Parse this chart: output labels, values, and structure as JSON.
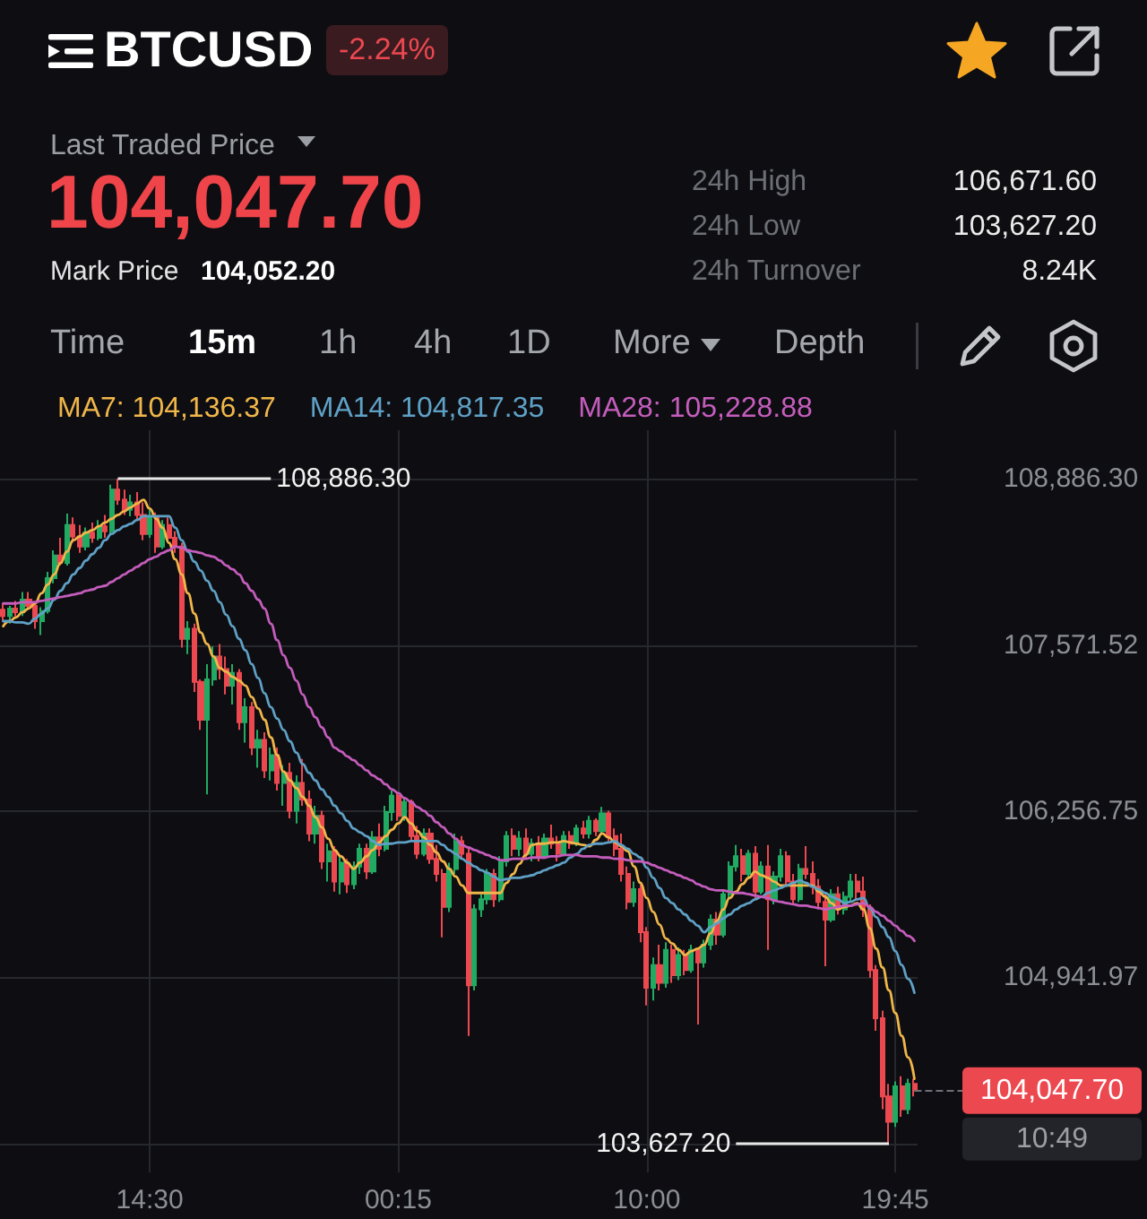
{
  "chart_data": {
    "type": "candlestick",
    "title": "BTCUSD",
    "categories": [
      null,
      null,
      null,
      null,
      null,
      null,
      null,
      null,
      null,
      null,
      null,
      null,
      null,
      null,
      null,
      null,
      null,
      null,
      null,
      null,
      null,
      null,
      null,
      "14:30",
      null,
      null,
      null,
      null,
      null,
      null,
      null,
      null,
      null,
      null,
      null,
      null,
      null,
      null,
      null,
      null,
      null,
      null,
      null,
      null,
      null,
      null,
      null,
      null,
      null,
      null,
      null,
      null,
      null,
      null,
      null,
      null,
      null,
      null,
      null,
      null,
      null,
      null,
      "00:15",
      null,
      null,
      null,
      null,
      null,
      null,
      null,
      null,
      null,
      null,
      null,
      null,
      null,
      null,
      null,
      null,
      null,
      null,
      null,
      null,
      null,
      null,
      null,
      null,
      null,
      null,
      null,
      null,
      null,
      null,
      null,
      null,
      null,
      null,
      null,
      null,
      null,
      null,
      "10:00",
      null,
      null,
      null,
      null,
      null,
      null,
      null,
      null,
      null,
      null,
      null,
      null,
      null,
      null,
      null,
      null,
      null,
      null,
      null,
      null,
      null,
      null,
      null,
      null,
      null,
      null,
      null,
      null,
      null,
      null,
      null,
      null,
      null,
      null,
      null,
      null,
      null,
      null,
      "19:45",
      null,
      null,
      null
    ],
    "series": [
      {
        "ohlc": [
          [
            107850,
            107900,
            107760,
            107800
          ],
          [
            107800,
            107880,
            107740,
            107860
          ],
          [
            107860,
            107920,
            107800,
            107830
          ],
          [
            107830,
            107990,
            107800,
            107930
          ],
          [
            107930,
            107990,
            107850,
            107880
          ],
          [
            107880,
            107920,
            107700,
            107760
          ],
          [
            107760,
            107870,
            107650,
            107840
          ],
          [
            107840,
            108150,
            107820,
            108100
          ],
          [
            108100,
            108320,
            108060,
            108280
          ],
          [
            108280,
            108420,
            108200,
            108220
          ],
          [
            108220,
            108610,
            108200,
            108520
          ],
          [
            108520,
            108580,
            108380,
            108430
          ],
          [
            108430,
            108520,
            108300,
            108350
          ],
          [
            108350,
            108500,
            108320,
            108460
          ],
          [
            108460,
            108540,
            108380,
            108420
          ],
          [
            108420,
            108560,
            108400,
            108510
          ],
          [
            108510,
            108600,
            108420,
            108470
          ],
          [
            108470,
            108840,
            108450,
            108800
          ],
          [
            108800,
            108886.3,
            108680,
            108720
          ],
          [
            108720,
            108800,
            108600,
            108640
          ],
          [
            108640,
            108760,
            108590,
            108700
          ],
          [
            108700,
            108780,
            108560,
            108600
          ],
          [
            108600,
            108700,
            108400,
            108450
          ],
          [
            108450,
            108640,
            108420,
            108580
          ],
          [
            108580,
            108620,
            108300,
            108350
          ],
          [
            108350,
            108560,
            108330,
            108520
          ],
          [
            108520,
            108580,
            108380,
            108420
          ],
          [
            108420,
            108470,
            108300,
            108350
          ],
          [
            108350,
            108380,
            107550,
            107620
          ],
          [
            107620,
            107760,
            107500,
            107700
          ],
          [
            107700,
            107740,
            107200,
            107280
          ],
          [
            107280,
            107300,
            106900,
            106980
          ],
          [
            106980,
            107420,
            106390,
            107300
          ],
          [
            107300,
            107560,
            107250,
            107480
          ],
          [
            107480,
            107580,
            107300,
            107380
          ],
          [
            107380,
            107480,
            107180,
            107250
          ],
          [
            107250,
            107420,
            107100,
            107350
          ],
          [
            107350,
            107380,
            106900,
            106960
          ],
          [
            106960,
            107150,
            106800,
            107080
          ],
          [
            107080,
            107120,
            106700,
            106760
          ],
          [
            106760,
            106900,
            106600,
            106820
          ],
          [
            106820,
            106880,
            106520,
            106580
          ],
          [
            106580,
            106760,
            106500,
            106700
          ],
          [
            106700,
            106760,
            106420,
            106480
          ],
          [
            106480,
            106620,
            106300,
            106560
          ],
          [
            106560,
            106640,
            106200,
            106260
          ],
          [
            106260,
            106540,
            106160,
            106480
          ],
          [
            106480,
            106670,
            106300,
            106350
          ],
          [
            106350,
            106420,
            106020,
            106080
          ],
          [
            106080,
            106300,
            106000,
            106220
          ],
          [
            106220,
            106260,
            105800,
            105860
          ],
          [
            105860,
            106000,
            105700,
            105940
          ],
          [
            105940,
            105980,
            105620,
            105700
          ],
          [
            105700,
            105900,
            105600,
            105850
          ],
          [
            105850,
            105880,
            105610,
            105680
          ],
          [
            105680,
            105860,
            105640,
            105820
          ],
          [
            105820,
            106000,
            105760,
            105960
          ],
          [
            105960,
            106000,
            105720,
            105780
          ],
          [
            105780,
            106100,
            105760,
            106050
          ],
          [
            106050,
            106160,
            105900,
            105960
          ],
          [
            105960,
            106300,
            105940,
            106250
          ],
          [
            106250,
            106420,
            106180,
            106380
          ],
          [
            106380,
            106400,
            106180,
            106220
          ],
          [
            106220,
            106360,
            106180,
            106330
          ],
          [
            106330,
            106350,
            106020,
            106060
          ],
          [
            106060,
            106140,
            105880,
            105920
          ],
          [
            105920,
            106120,
            105900,
            106080
          ],
          [
            106080,
            106120,
            105840,
            105880
          ],
          [
            105880,
            105990,
            105700,
            105760
          ],
          [
            105760,
            105800,
            105260,
            105500
          ],
          [
            105500,
            105850,
            105460,
            105800
          ],
          [
            105800,
            106080,
            105760,
            106020
          ],
          [
            106020,
            106060,
            105880,
            105920
          ],
          [
            105920,
            105960,
            104480,
            104880
          ],
          [
            104880,
            105520,
            104840,
            105480
          ],
          [
            105480,
            105600,
            105420,
            105560
          ],
          [
            105560,
            105800,
            105520,
            105760
          ],
          [
            105760,
            105800,
            105500,
            105560
          ],
          [
            105560,
            105900,
            105540,
            105860
          ],
          [
            105860,
            106100,
            105820,
            106060
          ],
          [
            106060,
            106120,
            105900,
            105960
          ],
          [
            105960,
            106100,
            105900,
            106040
          ],
          [
            106040,
            106120,
            105880,
            105920
          ],
          [
            105920,
            106040,
            105860,
            106000
          ],
          [
            106000,
            106060,
            105860,
            105900
          ],
          [
            105900,
            106080,
            105880,
            106040
          ],
          [
            106040,
            106150,
            105960,
            106000
          ],
          [
            106000,
            106060,
            105860,
            105920
          ],
          [
            105920,
            106100,
            105900,
            106060
          ],
          [
            106060,
            106100,
            105960,
            106000
          ],
          [
            106000,
            106150,
            105980,
            106120
          ],
          [
            106120,
            106180,
            106040,
            106080
          ],
          [
            106080,
            106220,
            106040,
            106180
          ],
          [
            106180,
            106200,
            106060,
            106100
          ],
          [
            106100,
            106290,
            106080,
            106240
          ],
          [
            106240,
            106260,
            106020,
            106060
          ],
          [
            106060,
            106120,
            105900,
            105960
          ],
          [
            105960,
            106080,
            105700,
            105760
          ],
          [
            105760,
            105820,
            105480,
            105540
          ],
          [
            105540,
            105700,
            105500,
            105640
          ],
          [
            105640,
            105680,
            105220,
            105300
          ],
          [
            105300,
            105340,
            104720,
            104860
          ],
          [
            104860,
            105100,
            104760,
            105040
          ],
          [
            105040,
            105200,
            104840,
            104900
          ],
          [
            104900,
            105220,
            104860,
            105160
          ],
          [
            105160,
            105200,
            104900,
            104960
          ],
          [
            104960,
            105180,
            104920,
            105120
          ],
          [
            105120,
            105160,
            104960,
            105000
          ],
          [
            105000,
            105200,
            104980,
            105160
          ],
          [
            105160,
            105180,
            104570,
            105060
          ],
          [
            105060,
            105240,
            105020,
            105200
          ],
          [
            105200,
            105440,
            105160,
            105400
          ],
          [
            105400,
            105460,
            105200,
            105280
          ],
          [
            105280,
            105640,
            105260,
            105600
          ],
          [
            105600,
            105860,
            105560,
            105820
          ],
          [
            105820,
            105990,
            105780,
            105900
          ],
          [
            105900,
            105960,
            105700,
            105760
          ],
          [
            105760,
            105950,
            105740,
            105920
          ],
          [
            105920,
            105980,
            105560,
            105620
          ],
          [
            105620,
            105860,
            105600,
            105820
          ],
          [
            105820,
            105990,
            105160,
            105560
          ],
          [
            105560,
            105780,
            105520,
            105740
          ],
          [
            105740,
            105960,
            105700,
            105900
          ],
          [
            105900,
            105940,
            105660,
            105700
          ],
          [
            105700,
            105760,
            105520,
            105560
          ],
          [
            105560,
            105840,
            105540,
            105800
          ],
          [
            105800,
            105980,
            105720,
            105760
          ],
          [
            105760,
            105860,
            105600,
            105660
          ],
          [
            105660,
            105720,
            105480,
            105540
          ],
          [
            105540,
            105600,
            105030,
            105400
          ],
          [
            105400,
            105640,
            105380,
            105600
          ],
          [
            105600,
            105660,
            105440,
            105480
          ],
          [
            105480,
            105620,
            105440,
            105580
          ],
          [
            105580,
            105760,
            105540,
            105700
          ],
          [
            105700,
            105760,
            105560,
            105620
          ],
          [
            105620,
            105740,
            105420,
            105480
          ],
          [
            105480,
            105520,
            104940,
            105000
          ],
          [
            105000,
            105040,
            104520,
            104620
          ],
          [
            104620,
            104680,
            103900,
            104000
          ],
          [
            104000,
            104100,
            103627.2,
            103800
          ],
          [
            103800,
            104120,
            103760,
            104080
          ],
          [
            104080,
            104160,
            103840,
            103900
          ],
          [
            103900,
            104140,
            103860,
            104100
          ],
          [
            104100,
            104140,
            104000,
            104047.7
          ]
        ]
      },
      {
        "type": "line",
        "name": "MA7: 104,136.37",
        "color": "#f0b64a",
        "values": [
          107720,
          107760,
          107790,
          107830,
          107860,
          107900,
          107980,
          108050,
          108130,
          108220,
          108310,
          108400,
          108430,
          108460,
          108480,
          108510,
          108540,
          108570,
          108600,
          108630,
          108660,
          108690,
          108720,
          108650,
          108570,
          108500,
          108380,
          108250,
          108130,
          107980,
          107820,
          107670,
          107580,
          107480,
          107390,
          107360,
          107320,
          107290,
          107250,
          107160,
          107070,
          106980,
          106840,
          106700,
          106570,
          106500,
          106440,
          106370,
          106300,
          106210,
          106130,
          106040,
          105950,
          105900,
          105850,
          105800,
          105850,
          105900,
          105950,
          106010,
          106060,
          106110,
          106160,
          106210,
          106160,
          106100,
          106050,
          105990,
          105930,
          105860,
          105800,
          105740,
          105670,
          105610,
          105610,
          105610,
          105610,
          105610,
          105610,
          105690,
          105760,
          105840,
          105910,
          105990,
          106000,
          106000,
          106010,
          106010,
          106020,
          106010,
          106000,
          105990,
          105980,
          106030,
          106080,
          106050,
          106010,
          105980,
          105940,
          105820,
          105690,
          105570,
          105460,
          105360,
          105250,
          105210,
          105160,
          105120,
          105150,
          105170,
          105200,
          105290,
          105390,
          105480,
          105570,
          105620,
          105680,
          105730,
          105780,
          105750,
          105730,
          105700,
          105670,
          105670,
          105670,
          105670,
          105670,
          105670,
          105620,
          105580,
          105530,
          105480,
          105500,
          105510,
          105530,
          105480,
          105330,
          105170,
          105020,
          104840,
          104660,
          104480,
          104310,
          104140
        ]
      },
      {
        "type": "line",
        "name": "MA14: 104,817.35",
        "color": "#5fa1c6",
        "values": [
          107760,
          107760,
          107750,
          107750,
          107740,
          107780,
          107820,
          107860,
          107930,
          108000,
          108060,
          108130,
          108180,
          108240,
          108290,
          108340,
          108400,
          108450,
          108480,
          108510,
          108530,
          108560,
          108590,
          108590,
          108590,
          108590,
          108590,
          108500,
          108400,
          108310,
          108230,
          108160,
          108080,
          108000,
          107910,
          107810,
          107720,
          107620,
          107530,
          107420,
          107310,
          107190,
          107080,
          106990,
          106900,
          106810,
          106720,
          106630,
          106560,
          106500,
          106430,
          106370,
          106300,
          106240,
          106180,
          106120,
          106090,
          106060,
          106020,
          105990,
          106000,
          106000,
          106010,
          106010,
          106020,
          106020,
          106020,
          106020,
          106020,
          105990,
          105950,
          105920,
          105880,
          105850,
          105820,
          105790,
          105770,
          105740,
          105710,
          105720,
          105730,
          105730,
          105740,
          105750,
          105770,
          105790,
          105810,
          105830,
          105850,
          105890,
          105920,
          105960,
          105990,
          106000,
          106000,
          106010,
          106020,
          105990,
          105960,
          105920,
          105890,
          105810,
          105730,
          105650,
          105570,
          105530,
          105480,
          105440,
          105390,
          105350,
          105300,
          105340,
          105370,
          105410,
          105440,
          105480,
          105510,
          105530,
          105560,
          105580,
          105610,
          105630,
          105650,
          105670,
          105690,
          105710,
          105690,
          105660,
          105640,
          105610,
          105580,
          105560,
          105530,
          105540,
          105560,
          105570,
          105490,
          105420,
          105340,
          105260,
          105150,
          105040,
          104930,
          104820
        ]
      },
      {
        "type": "line",
        "name": "MA28: 105,228.88",
        "color": "#c55dbd",
        "values": [
          107900,
          107900,
          107900,
          107910,
          107910,
          107910,
          107920,
          107930,
          107940,
          107950,
          107960,
          107970,
          107980,
          108000,
          108010,
          108030,
          108040,
          108070,
          108100,
          108130,
          108160,
          108190,
          108220,
          108250,
          108270,
          108300,
          108320,
          108350,
          108340,
          108320,
          108310,
          108300,
          108280,
          108270,
          108240,
          108200,
          108170,
          108130,
          108060,
          108000,
          107930,
          107860,
          107740,
          107610,
          107490,
          107390,
          107290,
          107180,
          107080,
          107000,
          106920,
          106840,
          106760,
          106730,
          106690,
          106660,
          106620,
          106580,
          106540,
          106510,
          106470,
          106430,
          106400,
          106360,
          106330,
          106290,
          106260,
          106220,
          106170,
          106130,
          106080,
          106040,
          105990,
          105970,
          105950,
          105930,
          105910,
          105890,
          105870,
          105870,
          105880,
          105880,
          105880,
          105890,
          105890,
          105890,
          105900,
          105900,
          105910,
          105910,
          105910,
          105900,
          105900,
          105900,
          105890,
          105890,
          105880,
          105880,
          105870,
          105860,
          105860,
          105850,
          105830,
          105810,
          105790,
          105770,
          105750,
          105730,
          105710,
          105680,
          105660,
          105640,
          105630,
          105630,
          105620,
          105610,
          105610,
          105600,
          105590,
          105580,
          105570,
          105550,
          105540,
          105530,
          105520,
          105510,
          105510,
          105500,
          105490,
          105480,
          105490,
          105500,
          105510,
          105510,
          105520,
          105530,
          105500,
          105460,
          105430,
          105390,
          105350,
          105310,
          105270,
          105230
        ]
      }
    ],
    "ylim": [
      103400,
      109270
    ],
    "yticks": [
      {
        "value": 103627.2,
        "label": null
      },
      {
        "value": 104941.97,
        "label": "104,941.97"
      },
      {
        "value": 106256.75,
        "label": "106,256.75"
      },
      {
        "value": 107571.52,
        "label": "107,571.52"
      },
      {
        "value": 108886.3,
        "label": "108,886.30"
      }
    ],
    "grid": true,
    "legend": "top",
    "ref_lines": [
      {
        "axis": "y",
        "value": 108886.3,
        "label": "108,886.30",
        "color": "#e8e8e8"
      },
      {
        "axis": "y",
        "value": 103627.2,
        "label": "103,627.20",
        "color": "#e8e8e8"
      },
      {
        "axis": "y",
        "value": 104047.7,
        "label": "104,047.70",
        "color": "#6e7076",
        "line_style": "dashed"
      }
    ],
    "annotations": [
      "-2.24%",
      "Last Traded Price",
      "104,047.70",
      "Mark Price",
      "104,052.20",
      "24h High",
      "106,671.60",
      "24h Low",
      "103,627.20",
      "24h Turnover",
      "8.24K",
      "Time",
      "15m",
      "1h",
      "4h",
      "1D",
      "More",
      "Depth",
      "10:49"
    ]
  }
}
